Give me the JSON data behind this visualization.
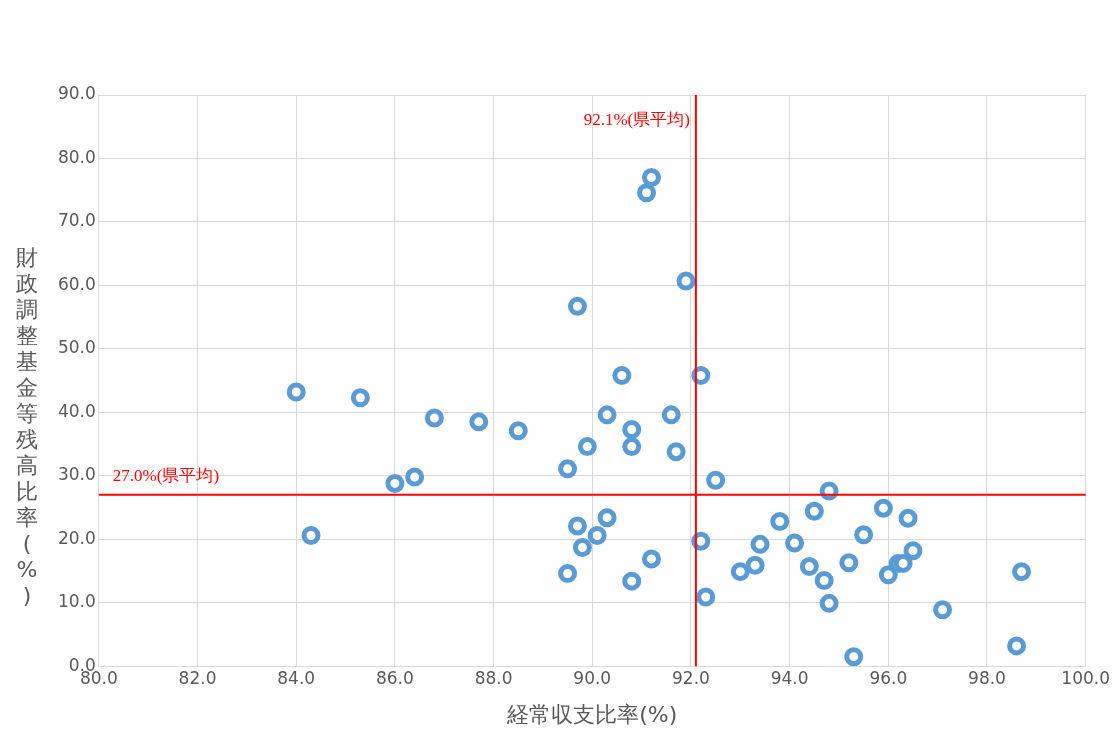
{
  "chart_data": {
    "type": "scatter",
    "xlabel": "経常収支比率(%)",
    "ylabel": "財政調整基金等残高比率(%)",
    "x": [
      84.0,
      84.3,
      85.3,
      86.0,
      86.4,
      86.8,
      87.7,
      88.5,
      89.5,
      89.5,
      89.7,
      89.7,
      89.8,
      89.9,
      90.1,
      90.3,
      90.3,
      90.6,
      90.8,
      90.8,
      90.8,
      91.1,
      91.2,
      91.2,
      91.6,
      91.7,
      91.9,
      92.2,
      92.2,
      92.3,
      92.5,
      93.0,
      93.3,
      93.4,
      93.8,
      94.1,
      94.4,
      94.5,
      94.7,
      94.8,
      94.8,
      95.2,
      95.3,
      95.5,
      95.9,
      96.0,
      96.2,
      96.3,
      96.4,
      96.5,
      97.1,
      98.6,
      98.7
    ],
    "values": [
      43.2,
      20.6,
      42.3,
      28.8,
      29.8,
      39.1,
      38.5,
      37.1,
      31.1,
      14.6,
      56.7,
      22.1,
      18.7,
      34.6,
      20.6,
      23.4,
      39.6,
      45.8,
      37.3,
      34.6,
      13.4,
      74.6,
      77.0,
      16.9,
      39.6,
      33.8,
      60.7,
      45.8,
      19.7,
      10.9,
      29.3,
      14.9,
      15.9,
      19.2,
      22.8,
      19.4,
      15.7,
      24.4,
      13.5,
      27.6,
      9.9,
      16.3,
      1.5,
      20.7,
      24.9,
      14.4,
      16.2,
      16.2,
      23.3,
      18.2,
      8.9,
      3.2,
      14.9
    ],
    "color": "#5b9bd5",
    "marker": "circle",
    "xlim": [
      80,
      100
    ],
    "xticks": [
      {
        "value": 80,
        "label": "80.0"
      },
      {
        "value": 82,
        "label": "82.0"
      },
      {
        "value": 84,
        "label": "84.0"
      },
      {
        "value": 86,
        "label": "86.0"
      },
      {
        "value": 88,
        "label": "88.0"
      },
      {
        "value": 90,
        "label": "90.0"
      },
      {
        "value": 92,
        "label": "92.0"
      },
      {
        "value": 94,
        "label": "94.0"
      },
      {
        "value": 96,
        "label": "96.0"
      },
      {
        "value": 98,
        "label": "98.0"
      },
      {
        "value": 100,
        "label": "100.0"
      }
    ],
    "ylim": [
      0,
      90
    ],
    "yticks": [
      {
        "value": 0,
        "label": "0.0"
      },
      {
        "value": 10,
        "label": "10.0"
      },
      {
        "value": 20,
        "label": "20.0"
      },
      {
        "value": 30,
        "label": "30.0"
      },
      {
        "value": 40,
        "label": "40.0"
      },
      {
        "value": 50,
        "label": "50.0"
      },
      {
        "value": 60,
        "label": "60.0"
      },
      {
        "value": 70,
        "label": "70.0"
      },
      {
        "value": 80,
        "label": "80.0"
      },
      {
        "value": 90,
        "label": "90.0"
      }
    ],
    "grid": true,
    "ref_lines": [
      {
        "axis": "x",
        "value": 92.1,
        "label": "92.1%(県平均)",
        "color": "#ff0000"
      },
      {
        "axis": "y",
        "value": 27.0,
        "label": "27.0%(県平均)",
        "color": "#ff0000"
      }
    ]
  }
}
